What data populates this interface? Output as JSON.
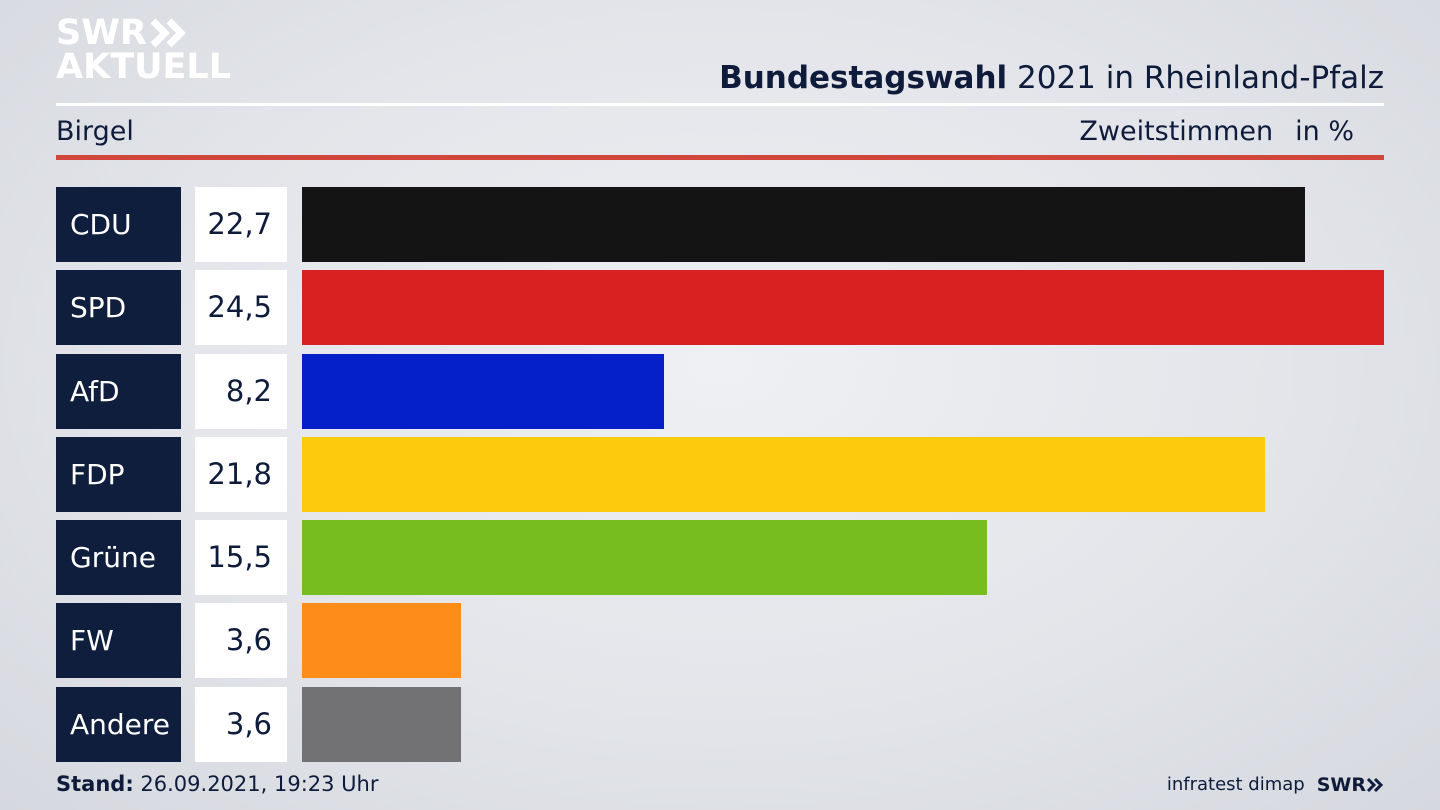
{
  "logo": {
    "line1": "SWR",
    "line2": "AKTUELL"
  },
  "header": {
    "title_bold": "Bundestagswahl",
    "title_rest": " 2021 in Rheinland-Pfalz",
    "region": "Birgel",
    "measure": "Zweitstimmen",
    "unit": "in %"
  },
  "chart_data": {
    "type": "bar",
    "orientation": "horizontal",
    "categories": [
      "CDU",
      "SPD",
      "AfD",
      "FDP",
      "Grüne",
      "FW",
      "Andere"
    ],
    "values": [
      22.7,
      24.5,
      8.2,
      21.8,
      15.5,
      3.6,
      3.6
    ],
    "value_labels": [
      "22,7",
      "24,5",
      "8,2",
      "21,8",
      "15,5",
      "3,6",
      "3,6"
    ],
    "colors": [
      "#141414",
      "#d92121",
      "#0520c8",
      "#fccb0c",
      "#78bd1e",
      "#fd8c18",
      "#727274"
    ],
    "xlim": [
      0,
      24.5
    ],
    "grid": false
  },
  "footer": {
    "stand_label": "Stand:",
    "stand_value": " 26.09.2021, 19:23 Uhr",
    "source": "infratest dimap",
    "brand": "SWR"
  },
  "colors": {
    "navy": "#0f1e3d",
    "accent_red": "#d0463a"
  }
}
